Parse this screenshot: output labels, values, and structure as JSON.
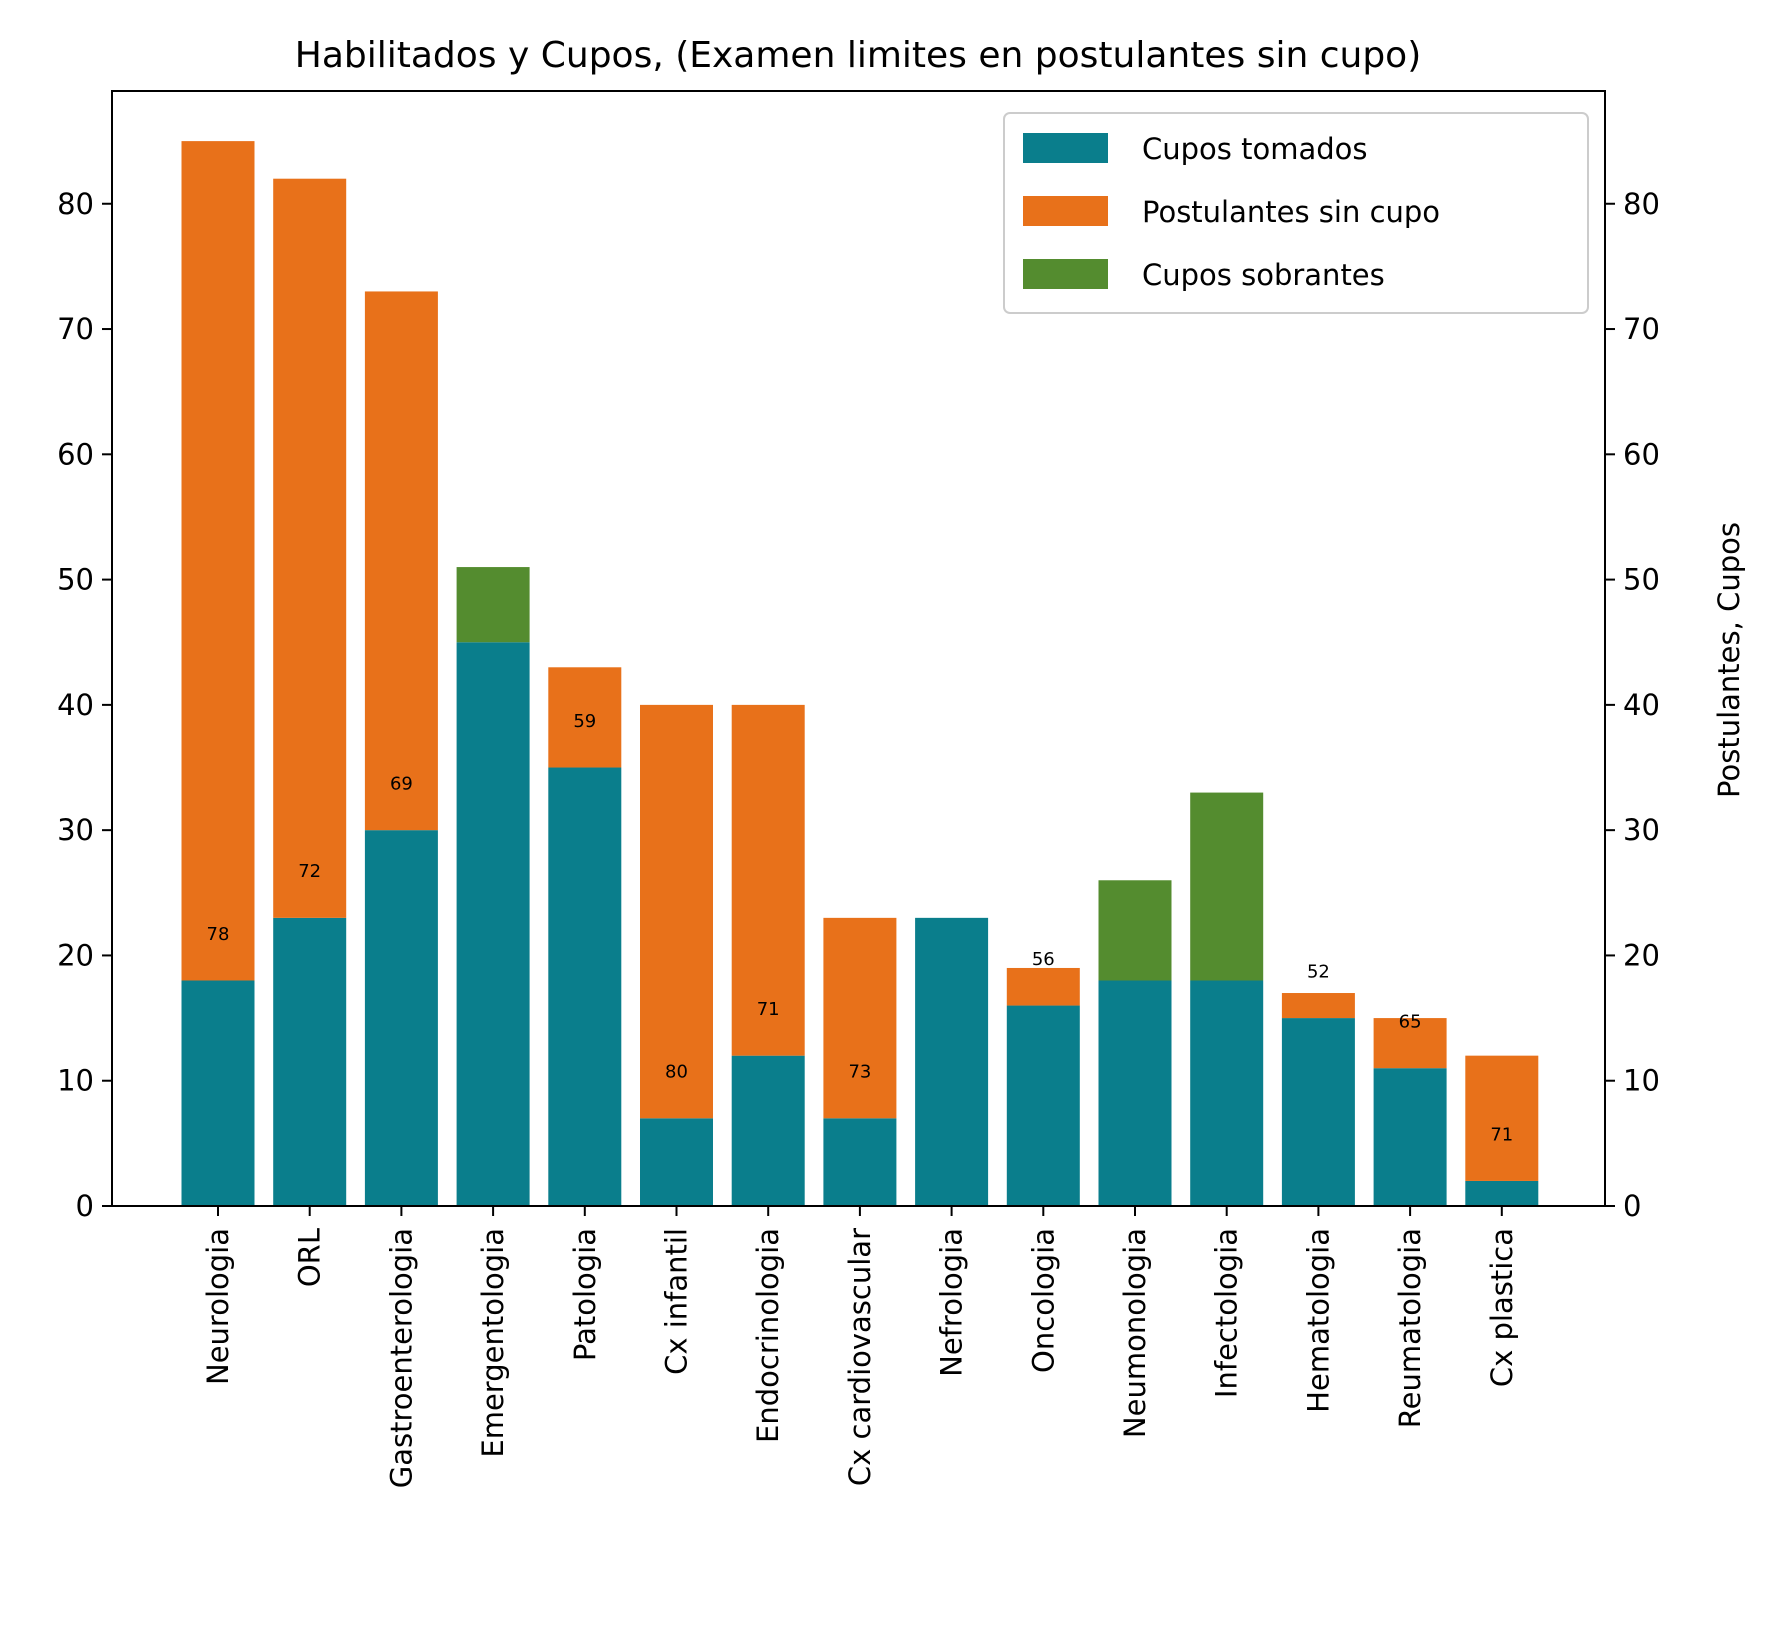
{
  "chart_data": {
    "type": "bar",
    "stacked": true,
    "title": "Habilitados y Cupos, (Examen limites en postulantes sin cupo)",
    "xlabel": "",
    "ylabel": "",
    "ylabel_right": "Postulantes, Cupos",
    "ylim": [
      0,
      89
    ],
    "yticks": [
      0,
      10,
      20,
      30,
      40,
      50,
      60,
      70,
      80
    ],
    "grid": false,
    "legend_position": "top-right",
    "categories": [
      "Neurologia",
      "ORL",
      "Gastroenterologia",
      "Emergentologia",
      "Patologia",
      "Cx infantil",
      "Endocrinologia",
      "Cx cardiovascular",
      "Nefrologia",
      "Oncologia",
      "Neumonologia",
      "Infectologia",
      "Hematologia",
      "Reumatologia",
      "Cx plastica"
    ],
    "series": [
      {
        "name": "Cupos tomados",
        "color": "#0a7e8c",
        "values": [
          18,
          23,
          30,
          45,
          35,
          7,
          12,
          7,
          23,
          16,
          18,
          18,
          15,
          11,
          2
        ]
      },
      {
        "name": "Postulantes sin cupo",
        "color": "#e8711a",
        "values": [
          67,
          59,
          43,
          0,
          8,
          33,
          28,
          16,
          0,
          3,
          0,
          0,
          2,
          4,
          10
        ]
      },
      {
        "name": "Cupos sobrantes",
        "color": "#548c2f",
        "values": [
          0,
          0,
          0,
          6,
          0,
          0,
          0,
          0,
          0,
          0,
          8,
          15,
          0,
          0,
          0
        ]
      }
    ],
    "annotations": [
      {
        "category": "Neurologia",
        "text": "78",
        "y": 21.8
      },
      {
        "category": "ORL",
        "text": "72",
        "y": 26.8
      },
      {
        "category": "Gastroenterologia",
        "text": "69",
        "y": 33.8
      },
      {
        "category": "Patologia",
        "text": "59",
        "y": 38.8
      },
      {
        "category": "Cx infantil",
        "text": "80",
        "y": 10.8
      },
      {
        "category": "Endocrinologia",
        "text": "71",
        "y": 15.8
      },
      {
        "category": "Cx cardiovascular",
        "text": "73",
        "y": 10.8
      },
      {
        "category": "Oncologia",
        "text": "56",
        "y": 19.8
      },
      {
        "category": "Hematologia",
        "text": "52",
        "y": 18.8
      },
      {
        "category": "Reumatologia",
        "text": "65",
        "y": 14.8
      },
      {
        "category": "Cx plastica",
        "text": "71",
        "y": 5.8
      }
    ]
  }
}
